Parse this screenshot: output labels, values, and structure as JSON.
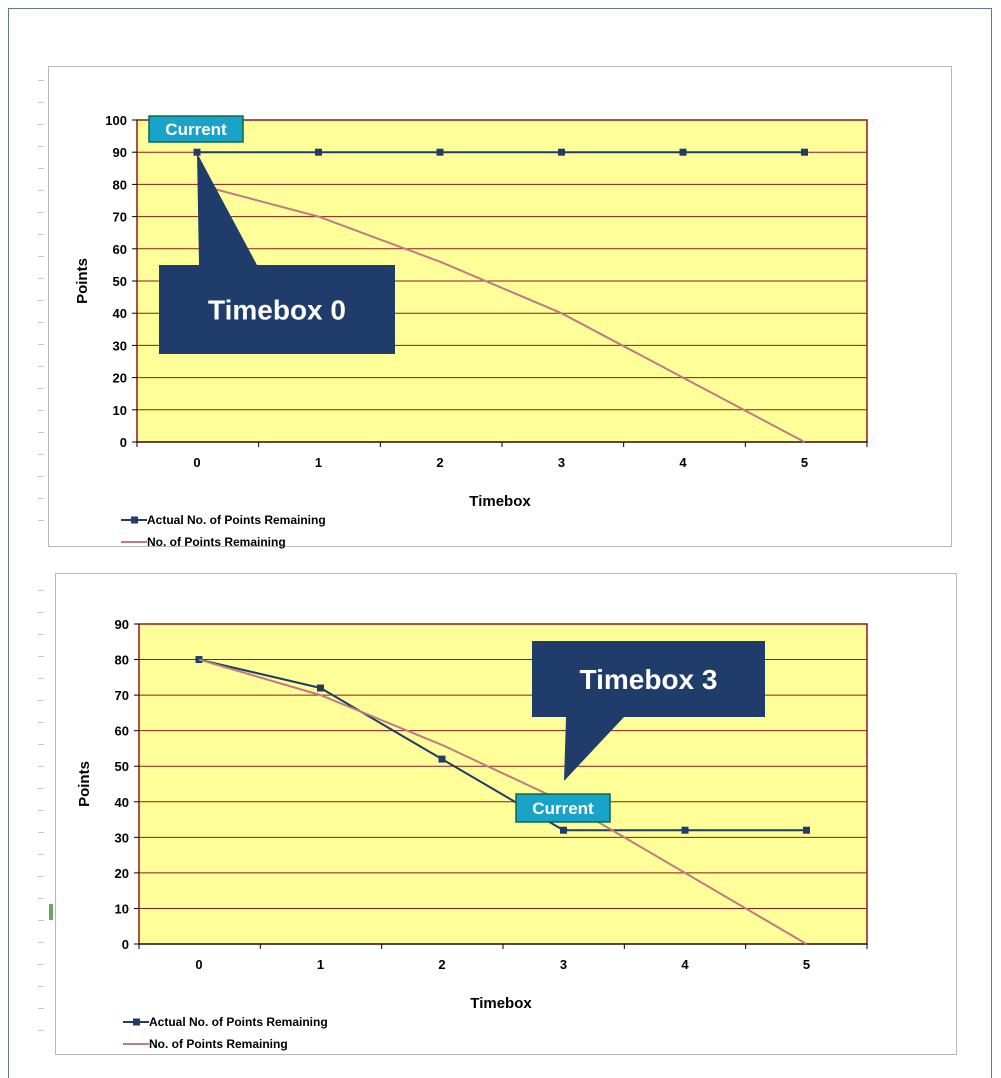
{
  "chart_data": [
    {
      "type": "line",
      "xlabel": "Timebox",
      "ylabel": "Points",
      "categories": [
        "0",
        "1",
        "2",
        "3",
        "4",
        "5"
      ],
      "x": [
        0,
        1,
        2,
        3,
        4,
        5
      ],
      "ylim": [
        0,
        100
      ],
      "yticks": [
        "0",
        "10",
        "20",
        "30",
        "40",
        "50",
        "60",
        "70",
        "80",
        "90",
        "100"
      ],
      "grid": true,
      "legend_position": "bottom-left",
      "series": [
        {
          "name": "Actual No. of Points Remaining",
          "values": [
            90,
            90,
            90,
            90,
            90,
            90
          ],
          "color": "#1f3c6b",
          "markers": true
        },
        {
          "name": "No. of Points Remaining",
          "values": [
            80,
            70,
            56,
            40,
            20,
            0
          ],
          "color": "#c07a86",
          "markers": false
        }
      ],
      "annotations": [
        {
          "text": "Current",
          "kind": "label",
          "at_x": 0,
          "at_y": 90
        },
        {
          "text": "Timebox 0",
          "kind": "callout",
          "points_to_x": 0,
          "points_to_y": 90
        }
      ],
      "plot_background": "#ffff99",
      "plot_border": "#8b1a1a",
      "gridline_color": "#8b1a1a"
    },
    {
      "type": "line",
      "xlabel": "Timebox",
      "ylabel": "Points",
      "categories": [
        "0",
        "1",
        "2",
        "3",
        "4",
        "5"
      ],
      "x": [
        0,
        1,
        2,
        3,
        4,
        5
      ],
      "ylim": [
        0,
        90
      ],
      "yticks": [
        "0",
        "10",
        "20",
        "30",
        "40",
        "50",
        "60",
        "70",
        "80",
        "90"
      ],
      "grid": true,
      "legend_position": "bottom-left",
      "series": [
        {
          "name": "Actual No. of Points Remaining",
          "values": [
            80,
            72,
            52,
            32,
            32,
            32
          ],
          "color": "#1f3c6b",
          "markers": true
        },
        {
          "name": "No. of Points Remaining",
          "values": [
            80,
            70,
            56,
            40,
            20,
            0
          ],
          "color": "#c07a86",
          "markers": false
        }
      ],
      "annotations": [
        {
          "text": "Current",
          "kind": "label",
          "at_x": 3,
          "at_y": 32
        },
        {
          "text": "Timebox 3",
          "kind": "callout",
          "points_to_x": 3,
          "points_to_y": 40
        }
      ],
      "plot_background": "#ffff99",
      "plot_border": "#8b1a1a",
      "gridline_color": "#8b1a1a"
    }
  ],
  "colors": {
    "callout_fill": "#1f3c6b",
    "current_fill": "#1aa3c8",
    "current_border": "#0a6a4a"
  }
}
